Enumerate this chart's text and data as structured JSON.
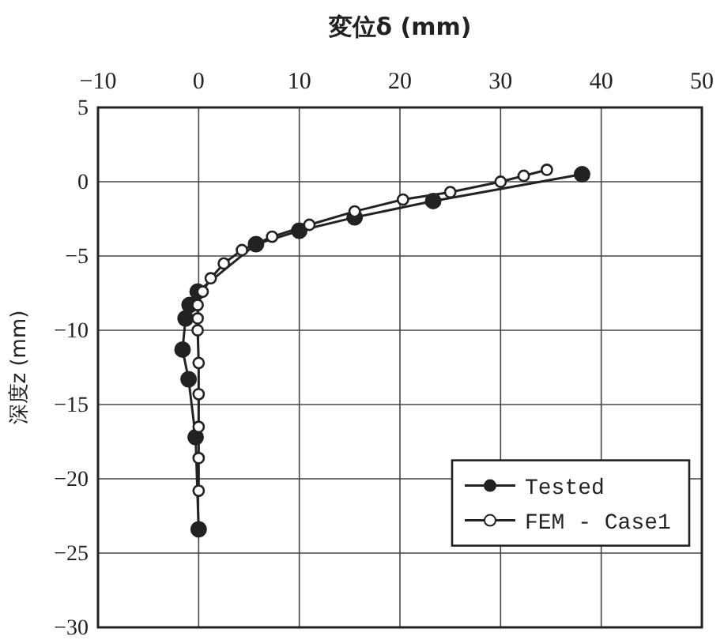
{
  "chart_data": {
    "type": "line",
    "xlabel": "変位δ (mm)",
    "ylabel": "深度z (mm)",
    "xlim": [
      -10,
      50
    ],
    "xticks": [
      -10,
      0,
      10,
      20,
      30,
      40,
      50
    ],
    "ylim": [
      -30,
      5
    ],
    "yticks": [
      -30,
      -25,
      -20,
      -15,
      -10,
      -5,
      0,
      5
    ],
    "grid": true,
    "legend": "bottom right",
    "marker": "circle",
    "line_style": "solid",
    "series": [
      {
        "name": "Tested",
        "color": "#222222",
        "x": [
          38.1,
          23.3,
          15.5,
          10,
          5.7,
          -0.1,
          -0.9,
          -1.3,
          -1.6,
          -1,
          -0.3,
          0
        ],
        "values": [
          0.5,
          -1.3,
          -2.4,
          -3.3,
          -4.2,
          -7.4,
          -8.3,
          -9.2,
          -11.3,
          -13.3,
          -17.2,
          -23.4
        ]
      },
      {
        "name": "FEM - Case1",
        "color": "#222222",
        "x": [
          34.6,
          32.3,
          30,
          25,
          20.3,
          15.5,
          11,
          7.3,
          4.3,
          2.5,
          1.2,
          0.4,
          -0.1,
          -0.1,
          -0.1,
          0,
          0,
          0,
          0,
          0
        ],
        "values": [
          0.8,
          0.4,
          0,
          -0.7,
          -1.2,
          -2,
          -2.9,
          -3.7,
          -4.6,
          -5.5,
          -6.5,
          -7.4,
          -8.3,
          -9.2,
          -10,
          -12.2,
          -14.3,
          -16.5,
          -18.6,
          -20.8
        ]
      }
    ]
  }
}
